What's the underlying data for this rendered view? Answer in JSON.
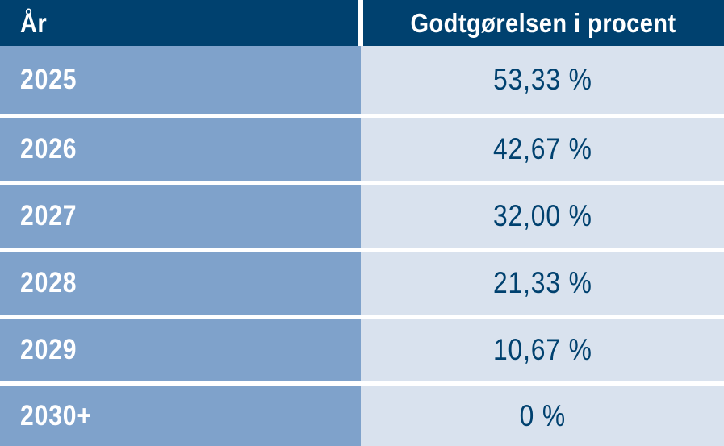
{
  "table": {
    "columns": [
      {
        "label": "År"
      },
      {
        "label": "Godtgørelsen i procent"
      }
    ],
    "rows": [
      {
        "year": "2025",
        "value": "53,33 %"
      },
      {
        "year": "2026",
        "value": "42,67 %"
      },
      {
        "year": "2027",
        "value": "32,00 %"
      },
      {
        "year": "2028",
        "value": "21,33 %"
      },
      {
        "year": "2029",
        "value": "10,67 %"
      },
      {
        "year": "2030+",
        "value": "0 %"
      }
    ]
  },
  "chart_data": {
    "type": "table",
    "title": "",
    "columns": [
      "År",
      "Godtgørelsen i procent"
    ],
    "rows": [
      [
        "2025",
        "53,33 %"
      ],
      [
        "2026",
        "42,67 %"
      ],
      [
        "2027",
        "32,00 %"
      ],
      [
        "2028",
        "21,33 %"
      ],
      [
        "2029",
        "10,67 %"
      ],
      [
        "2030+",
        "0 %"
      ]
    ],
    "values_numeric_percent": [
      53.33,
      42.67,
      32.0,
      21.33,
      10.67,
      0
    ]
  },
  "colors": {
    "header_bg": "#00416F",
    "header_text": "#FFFFFF",
    "year_column_bg": "#7FA2CB",
    "year_text": "#FFFFFF",
    "value_column_bg": "#D9E2EE",
    "value_text": "#00416F",
    "separator": "#FFFFFF"
  }
}
